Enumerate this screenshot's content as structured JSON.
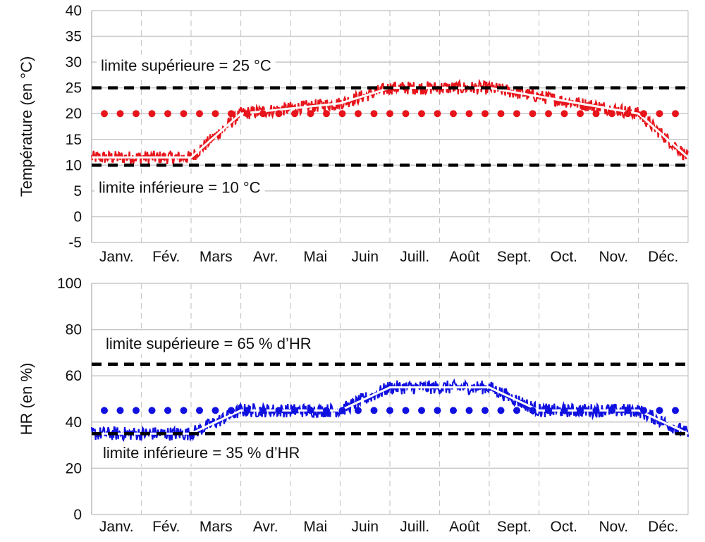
{
  "chart_data": [
    {
      "type": "line",
      "ylabel": "Température (en °C)",
      "ylim": [
        -5,
        40
      ],
      "yticks": [
        -5,
        0,
        5,
        10,
        15,
        20,
        25,
        30,
        35,
        40
      ],
      "categories": [
        "Janv.",
        "Fév.",
        "Mars",
        "Avr.",
        "Mai",
        "Juin",
        "Juill.",
        "Août",
        "Sept.",
        "Oct.",
        "Nov.",
        "Déc."
      ],
      "grid": true,
      "series": [
        {
          "style": "noisy-band",
          "color": "#e8141b",
          "x": [
            0,
            2,
            3,
            5,
            6,
            8,
            11,
            12
          ],
          "y": [
            11.5,
            11.5,
            20,
            22,
            25,
            25,
            20,
            11.5
          ],
          "amplitude": 1.3
        },
        {
          "style": "solid",
          "color": "#ffffff",
          "x": [
            0,
            2,
            3,
            5,
            6,
            8,
            11,
            12
          ],
          "y": [
            11.5,
            11.5,
            20,
            22,
            25,
            25,
            20,
            11.5
          ]
        },
        {
          "style": "dotted",
          "color": "#e8141b",
          "x": [
            0,
            12
          ],
          "y": [
            20,
            20
          ]
        }
      ],
      "reference_lines": [
        {
          "value": 25,
          "color": "#000000",
          "style": "dashed",
          "label": "limite supérieure = 25 °C"
        },
        {
          "value": 10,
          "color": "#000000",
          "style": "dashed",
          "label": "limite inférieure = 10 °C"
        }
      ]
    },
    {
      "type": "line",
      "ylabel": "HR (en %)",
      "ylim": [
        0,
        100
      ],
      "yticks": [
        0,
        20,
        40,
        60,
        80,
        100
      ],
      "categories": [
        "Janv.",
        "Fév.",
        "Mars",
        "Avr.",
        "Mai",
        "Juin",
        "Juill.",
        "Août",
        "Sept.",
        "Oct.",
        "Nov.",
        "Déc."
      ],
      "grid": true,
      "series": [
        {
          "style": "noisy-band",
          "color": "#1010e0",
          "x": [
            0,
            2,
            3,
            5,
            6,
            8,
            9,
            11,
            12
          ],
          "y": [
            35,
            35,
            45,
            45,
            55,
            55,
            45,
            45,
            35
          ],
          "amplitude": 3
        },
        {
          "style": "solid",
          "color": "#ffffff",
          "x": [
            0,
            2,
            3,
            5,
            6,
            8,
            9,
            11,
            12
          ],
          "y": [
            35,
            35,
            45,
            45,
            55,
            55,
            45,
            45,
            35
          ]
        },
        {
          "style": "dotted",
          "color": "#1010e0",
          "x": [
            0,
            12
          ],
          "y": [
            45,
            45
          ]
        }
      ],
      "reference_lines": [
        {
          "value": 65,
          "color": "#000000",
          "style": "dashed",
          "label": "limite supérieure = 65 % d’HR"
        },
        {
          "value": 35,
          "color": "#000000",
          "style": "dashed",
          "label": "limite inférieure = 35 % d’HR"
        }
      ]
    }
  ]
}
